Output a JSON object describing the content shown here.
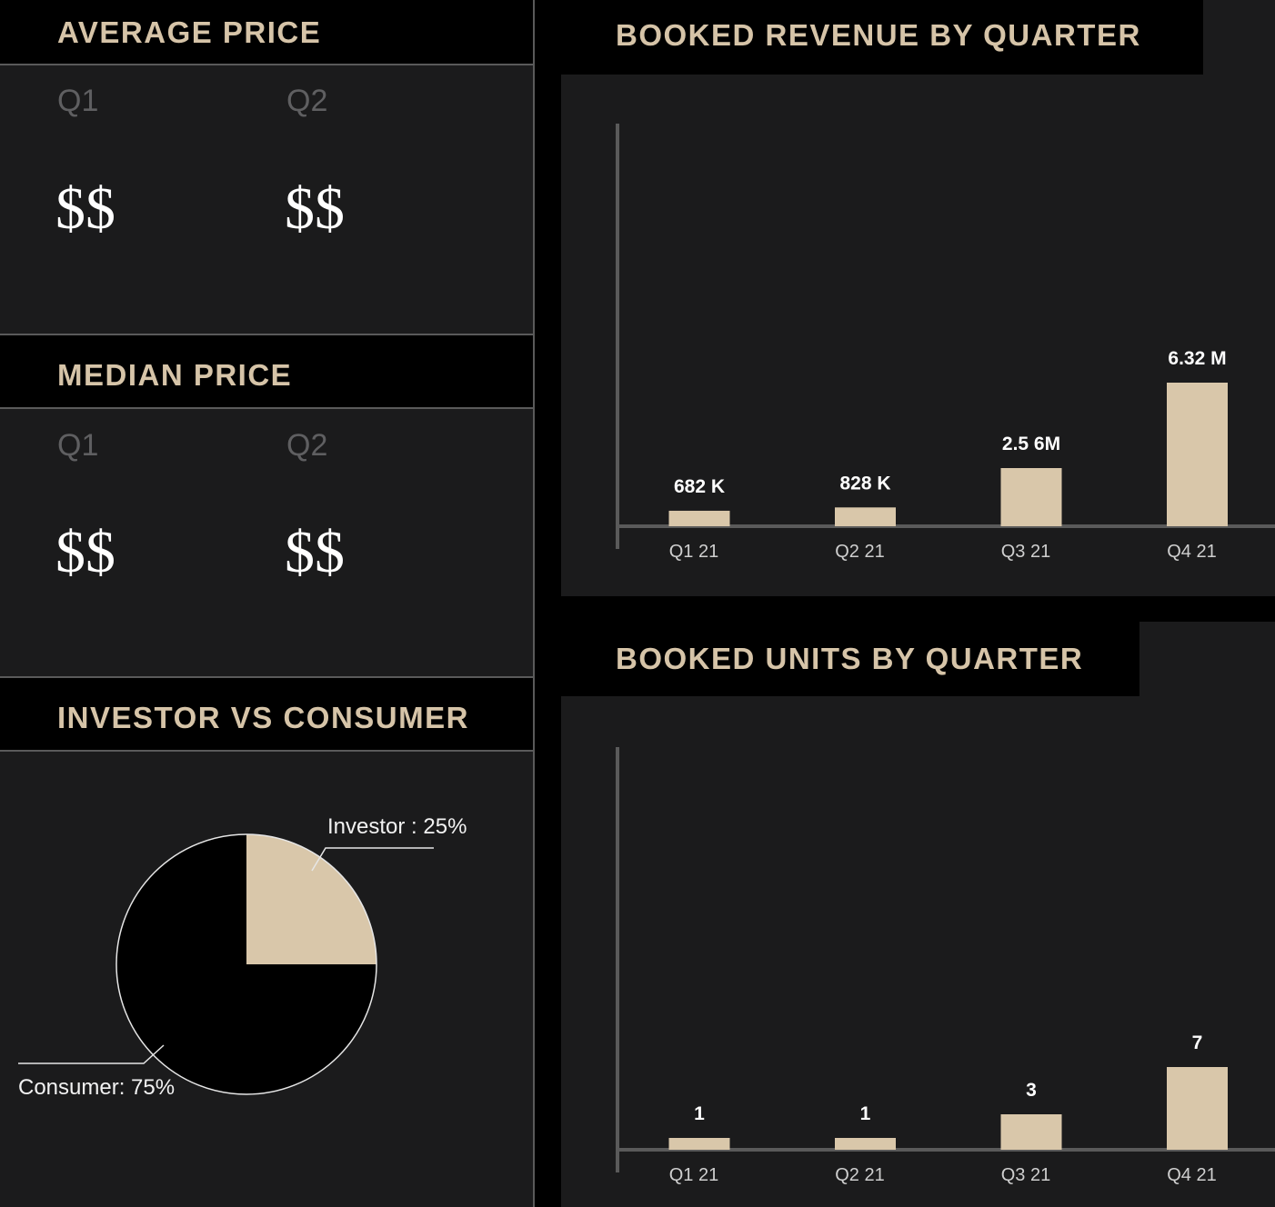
{
  "average_price": {
    "title": "AVERAGE PRICE",
    "q1_label": "Q1",
    "q2_label": "Q2",
    "q1_value": "$$",
    "q2_value": "$$"
  },
  "median_price": {
    "title": "MEDIAN PRICE",
    "q1_label": "Q1",
    "q2_label": "Q2",
    "q1_value": "$$",
    "q2_value": "$$"
  },
  "investor_consumer": {
    "title": "INVESTOR VS CONSUMER"
  },
  "booked_revenue": {
    "title": "BOOKED REVENUE BY QUARTER"
  },
  "booked_units": {
    "title": "BOOKED UNITS BY QUARTER"
  },
  "colors": {
    "accent": "#d9c7aa",
    "panel": "#1b1b1c",
    "header": "#000000",
    "axis": "#5a5a5a"
  },
  "chart_data": [
    {
      "type": "pie",
      "title": "INVESTOR VS CONSUMER",
      "slices": [
        {
          "label": "Investor : 25%",
          "value": 25,
          "color": "#d9c7aa"
        },
        {
          "label": "Consumer: 75%",
          "value": 75,
          "color": "#000000"
        }
      ]
    },
    {
      "type": "bar",
      "title": "BOOKED REVENUE BY QUARTER",
      "categories": [
        "Q1 21",
        "Q2 21",
        "Q3 21",
        "Q4 21"
      ],
      "values": [
        682000,
        828000,
        2560000,
        6320000
      ],
      "data_labels": [
        "682 K",
        "828 K",
        "2.5 6M",
        "6.32 M"
      ],
      "ylim": [
        0,
        8000000
      ],
      "grid": false
    },
    {
      "type": "bar",
      "title": "BOOKED UNITS BY QUARTER",
      "categories": [
        "Q1 21",
        "Q2 21",
        "Q3 21",
        "Q4 21"
      ],
      "values": [
        1,
        1,
        3,
        7
      ],
      "data_labels": [
        "1",
        "1",
        "3",
        "7"
      ],
      "ylim": [
        0,
        25
      ],
      "grid": false
    }
  ]
}
